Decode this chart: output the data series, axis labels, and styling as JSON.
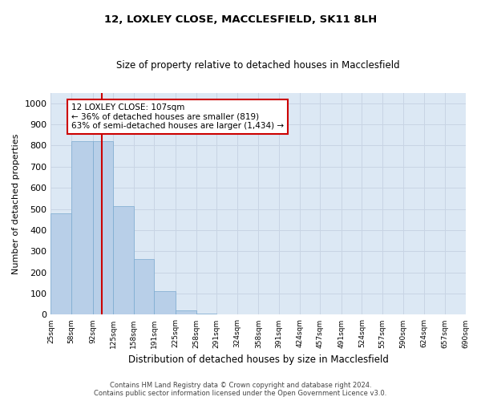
{
  "title1": "12, LOXLEY CLOSE, MACCLESFIELD, SK11 8LH",
  "title2": "Size of property relative to detached houses in Macclesfield",
  "xlabel": "Distribution of detached houses by size in Macclesfield",
  "ylabel": "Number of detached properties",
  "bin_edges": [
    25,
    58,
    92,
    125,
    158,
    191,
    225,
    258,
    291,
    324,
    358,
    391,
    424,
    457,
    491,
    524,
    557,
    590,
    624,
    657,
    690
  ],
  "bar_heights": [
    480,
    820,
    820,
    515,
    265,
    110,
    20,
    5,
    2,
    1,
    0,
    0,
    0,
    0,
    0,
    0,
    0,
    0,
    0,
    0
  ],
  "bar_color": "#b8cfe8",
  "bar_edge_color": "#7aaad0",
  "property_line_x": 107,
  "property_line_color": "#cc0000",
  "annotation_text": "12 LOXLEY CLOSE: 107sqm\n← 36% of detached houses are smaller (819)\n63% of semi-detached houses are larger (1,434) →",
  "annotation_box_color": "#cc0000",
  "ylim": [
    0,
    1050
  ],
  "yticks": [
    0,
    100,
    200,
    300,
    400,
    500,
    600,
    700,
    800,
    900,
    1000
  ],
  "grid_color": "#c8d4e4",
  "background_color": "#dce8f4",
  "footer_line1": "Contains HM Land Registry data © Crown copyright and database right 2024.",
  "footer_line2": "Contains public sector information licensed under the Open Government Licence v3.0."
}
